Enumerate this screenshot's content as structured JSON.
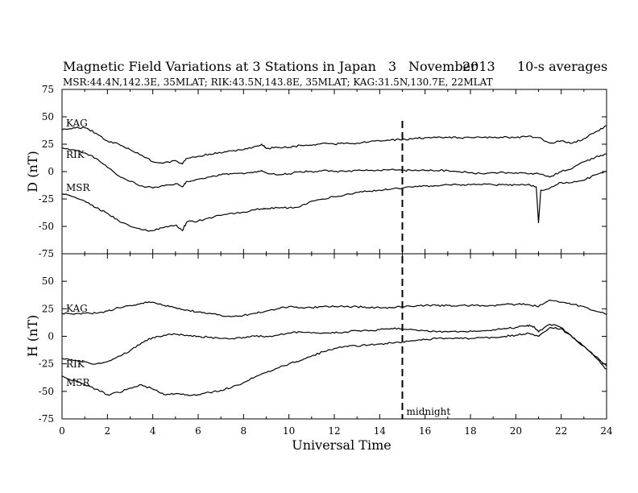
{
  "header": {
    "title": "Magnetic Field Variations at 3 Stations in Japan",
    "day": "3",
    "month": "November",
    "year": "2013",
    "averaging": "10-s averages",
    "stations_line": "MSR:44.4N,142.3E, 35MLAT;  RIK:43.5N,143.8E, 35MLAT;  KAG:31.5N,130.7E, 22MLAT"
  },
  "chart_data": [
    {
      "type": "line",
      "panel": "D",
      "ylabel": "D (nT)",
      "ylim": [
        -75,
        75
      ],
      "yticks": [
        "75",
        "50",
        "25",
        "0",
        "-25",
        "-50",
        "-75"
      ],
      "xlim": [
        0,
        24
      ],
      "series": [
        {
          "name": "KAG",
          "x": [
            0,
            0.5,
            1,
            1.5,
            2,
            2.5,
            3,
            3.5,
            4,
            4.5,
            5,
            5.3,
            5.5,
            6,
            6.5,
            7,
            7.5,
            8,
            8.5,
            8.8,
            9,
            9.5,
            10,
            10.5,
            11,
            11.5,
            12,
            12.5,
            13,
            13.5,
            14,
            14.5,
            15,
            15.5,
            16,
            16.5,
            17,
            17.5,
            18,
            18.5,
            19,
            19.5,
            20,
            20.5,
            21,
            21.5,
            22,
            22.5,
            23,
            23.5,
            24
          ],
          "y": [
            38,
            40,
            40,
            35,
            28,
            25,
            20,
            15,
            9,
            8,
            10,
            7,
            12,
            14,
            16,
            17,
            19,
            20,
            23,
            25,
            21,
            22,
            22,
            24,
            24,
            26,
            25,
            26,
            26,
            27,
            28,
            29,
            29,
            30,
            31,
            31,
            31,
            31,
            31,
            31,
            31,
            32,
            31,
            32,
            31,
            26,
            28,
            26,
            30,
            36,
            42
          ]
        },
        {
          "name": "RIK",
          "x": [
            0,
            0.5,
            1,
            1.5,
            2,
            2.5,
            3,
            3.5,
            4,
            4.5,
            5,
            5.3,
            5.5,
            6,
            6.5,
            7,
            7.5,
            8,
            8.5,
            8.8,
            9,
            9.5,
            10,
            10.5,
            11,
            11.5,
            12,
            12.5,
            13,
            13.5,
            14,
            14.5,
            15,
            15.5,
            16,
            16.5,
            17,
            17.5,
            18,
            18.5,
            19,
            19.5,
            20,
            20.5,
            21,
            21.5,
            22,
            22.5,
            23,
            23.5,
            24
          ],
          "y": [
            22,
            20,
            17,
            12,
            4,
            -4,
            -9,
            -13,
            -15,
            -13,
            -11,
            -14,
            -9,
            -7,
            -5,
            -3,
            -2,
            -2,
            0,
            1,
            -1,
            -3,
            -2,
            0,
            0,
            1,
            0,
            0,
            1,
            1,
            1,
            2,
            1,
            1,
            1,
            1,
            1,
            0,
            -1,
            -2,
            -1,
            -1,
            -1,
            -2,
            -2,
            -5,
            0,
            3,
            9,
            13,
            16
          ]
        },
        {
          "name": "MSR",
          "x": [
            0,
            0.5,
            1,
            1.5,
            2,
            2.5,
            3,
            3.5,
            4,
            4.5,
            5,
            5.3,
            5.5,
            6,
            6.5,
            7,
            7.5,
            8,
            8.5,
            8.8,
            9,
            9.5,
            10,
            10.5,
            11,
            11.5,
            12,
            12.5,
            13,
            13.5,
            14,
            14.5,
            15,
            15.5,
            16,
            16.5,
            17,
            17.5,
            18,
            18.5,
            19,
            19.5,
            20,
            20.5,
            20.9,
            21,
            21.1,
            21.5,
            22,
            22.5,
            23,
            23.5,
            24
          ],
          "y": [
            -20,
            -23,
            -27,
            -33,
            -38,
            -45,
            -50,
            -53,
            -54,
            -51,
            -49,
            -54,
            -46,
            -45,
            -42,
            -40,
            -38,
            -37,
            -35,
            -34,
            -34,
            -33,
            -33,
            -32,
            -27,
            -25,
            -23,
            -21,
            -19,
            -18,
            -17,
            -16,
            -15,
            -14,
            -13,
            -13,
            -12,
            -12,
            -12,
            -12,
            -12,
            -12,
            -12,
            -12,
            -14,
            -47,
            -17,
            -15,
            -10,
            -10,
            -8,
            -3,
            0
          ]
        }
      ]
    },
    {
      "type": "line",
      "panel": "H",
      "ylabel": "H (nT)",
      "ylim": [
        -75,
        75
      ],
      "yticks": [
        "",
        "50",
        "25",
        "0",
        "-25",
        "-50",
        "-75"
      ],
      "xlim": [
        0,
        24
      ],
      "xlabel": "Universal Time",
      "xticks": [
        "0",
        "2",
        "4",
        "6",
        "8",
        "10",
        "12",
        "14",
        "16",
        "18",
        "20",
        "22",
        "24"
      ],
      "series": [
        {
          "name": "KAG",
          "x": [
            0,
            0.5,
            1,
            1.5,
            2,
            2.5,
            3,
            3.5,
            4,
            4.5,
            5,
            5.5,
            6,
            6.5,
            7,
            7.5,
            8,
            8.5,
            9,
            9.5,
            10,
            10.5,
            11,
            11.5,
            12,
            12.5,
            13,
            13.5,
            14,
            14.5,
            15,
            15.5,
            16,
            16.5,
            17,
            17.5,
            18,
            18.5,
            19,
            19.5,
            20,
            20.5,
            21,
            21.5,
            22,
            22.5,
            23,
            23.5,
            24
          ],
          "y": [
            21,
            20,
            21,
            21,
            23,
            26,
            28,
            30,
            31,
            28,
            26,
            24,
            22,
            21,
            19,
            18,
            19,
            21,
            23,
            25,
            27,
            26,
            26,
            27,
            27,
            27,
            27,
            26,
            26,
            26,
            27,
            27,
            28,
            28,
            28,
            28,
            28,
            28,
            28,
            29,
            29,
            29,
            27,
            33,
            31,
            29,
            27,
            23,
            20
          ]
        },
        {
          "name": "RIK",
          "x": [
            0,
            0.5,
            1,
            1.5,
            2,
            2.5,
            3,
            3.5,
            4,
            4.5,
            5,
            5.5,
            6,
            6.5,
            7,
            7.5,
            8,
            8.5,
            9,
            9.5,
            10,
            10.5,
            11,
            11.5,
            12,
            12.5,
            13,
            13.5,
            14,
            14.5,
            15,
            15.5,
            16,
            16.5,
            17,
            17.5,
            18,
            18.5,
            19,
            19.5,
            20,
            20.5,
            20.8,
            21,
            21.5,
            22,
            22.5,
            23,
            23.5,
            24
          ],
          "y": [
            -20,
            -22,
            -23,
            -25,
            -23,
            -18,
            -13,
            -6,
            -1,
            1,
            2,
            1,
            0,
            -1,
            -2,
            -2,
            -1,
            0,
            0,
            1,
            3,
            4,
            3,
            3,
            3,
            4,
            5,
            5,
            6,
            7,
            7,
            6,
            5,
            4,
            4,
            4,
            5,
            5,
            6,
            7,
            8,
            10,
            9,
            4,
            11,
            8,
            -1,
            -9,
            -18,
            -27
          ]
        },
        {
          "name": "MSR",
          "x": [
            0,
            0.5,
            1,
            1.5,
            2,
            2.5,
            3,
            3.5,
            4,
            4.5,
            5,
            5.5,
            6,
            6.5,
            7,
            7.5,
            8,
            8.5,
            9,
            9.5,
            10,
            10.5,
            11,
            11.5,
            12,
            12.5,
            13,
            13.5,
            14,
            14.5,
            15,
            15.5,
            16,
            16.5,
            17,
            17.5,
            18,
            18.5,
            19,
            19.5,
            20,
            20.5,
            21,
            21.5,
            22,
            22.5,
            23,
            23.5,
            24
          ],
          "y": [
            -36,
            -40,
            -44,
            -48,
            -53,
            -51,
            -47,
            -44,
            -48,
            -53,
            -52,
            -53,
            -53,
            -51,
            -49,
            -46,
            -42,
            -37,
            -33,
            -29,
            -25,
            -22,
            -18,
            -14,
            -11,
            -9,
            -9,
            -8,
            -7,
            -6,
            -5,
            -4,
            -3,
            -2,
            -2,
            -2,
            -2,
            -1,
            -1,
            0,
            1,
            3,
            0,
            8,
            7,
            -1,
            -9,
            -19,
            -30
          ]
        }
      ]
    }
  ],
  "annotation": {
    "midnight_label": "midnight",
    "midnight_x": 15
  }
}
